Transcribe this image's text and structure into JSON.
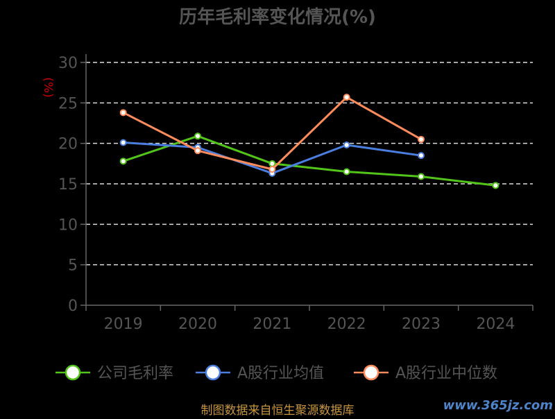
{
  "chart_data": {
    "type": "line",
    "title": "历年毛利率变化情况(%)",
    "ylabel": "(%)",
    "xlabel": "",
    "categories": [
      "2019",
      "2020",
      "2021",
      "2022",
      "2023",
      "2024"
    ],
    "ylim": [
      0,
      30
    ],
    "yticks": [
      0,
      5,
      10,
      15,
      20,
      25,
      30
    ],
    "grid": true,
    "legend_position": "bottom",
    "series": [
      {
        "name": "公司毛利率",
        "color": "#52c41a",
        "values": [
          17.8,
          20.9,
          17.5,
          16.5,
          15.9,
          14.8
        ]
      },
      {
        "name": "A股行业均值",
        "color": "#4a7fe0",
        "values": [
          20.1,
          19.5,
          16.3,
          19.8,
          18.5,
          null
        ]
      },
      {
        "name": "A股行业中位数",
        "color": "#ff8c5a",
        "values": [
          23.8,
          19.1,
          16.8,
          25.7,
          20.5,
          null
        ]
      }
    ]
  },
  "footer": {
    "source": "制图数据来自恒生聚源数据库",
    "watermark": "www.365jz.com"
  },
  "colors": {
    "background": "#000000",
    "text": "#555555",
    "axis": "#666666",
    "grid": "#dddddd",
    "ylabel": "#cc0000",
    "source": "#c8963c"
  }
}
